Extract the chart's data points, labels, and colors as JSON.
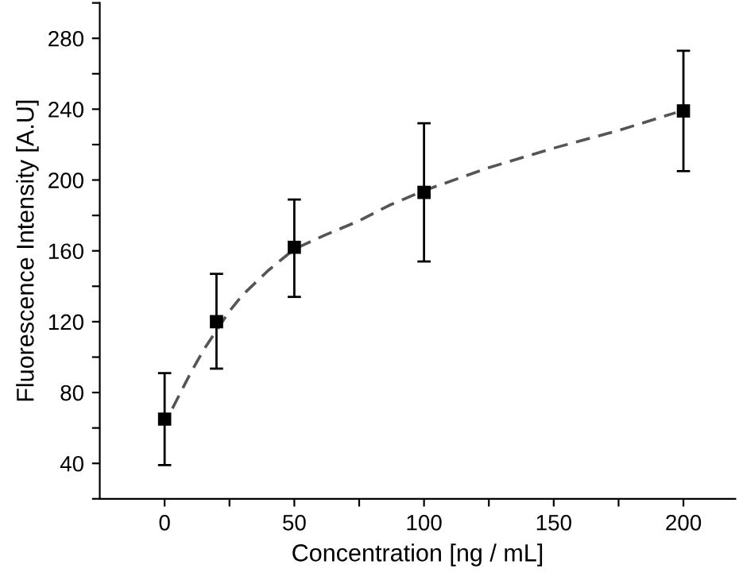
{
  "chart_data": {
    "type": "scatter",
    "xlabel": "Concentration [ng / mL]",
    "ylabel": "Fluorescence Intensity [A.U]",
    "xlim": [
      -25,
      220
    ],
    "ylim": [
      20,
      300
    ],
    "xticks": [
      0,
      {
        "value": 25,
        "label": null
      },
      50,
      {
        "value": 75,
        "label": null
      },
      100,
      {
        "value": 125,
        "label": null
      },
      150,
      {
        "value": 175,
        "label": null
      },
      200
    ],
    "yticks": [
      {
        "value": 20,
        "label": null
      },
      40,
      {
        "value": 60,
        "label": null
      },
      80,
      {
        "value": 100,
        "label": null
      },
      120,
      {
        "value": 140,
        "label": null
      },
      160,
      {
        "value": 180,
        "label": null
      },
      200,
      {
        "value": 220,
        "label": null
      },
      240,
      {
        "value": 260,
        "label": null
      },
      280,
      {
        "value": 300,
        "label": null
      }
    ],
    "grid": false,
    "legend": false,
    "series": [
      {
        "color": "#000000",
        "marker": "square",
        "x": [
          0,
          20,
          50,
          100,
          200
        ],
        "values": [
          65,
          120,
          162,
          193,
          239
        ],
        "errors": [
          [
            39,
            91
          ],
          [
            93.5,
            147
          ],
          [
            134,
            189
          ],
          [
            154,
            232
          ],
          [
            205,
            273
          ]
        ]
      },
      {
        "type": "line",
        "color": "#555555",
        "line_style": "dashed",
        "marker": "none",
        "x": [
          3,
          10,
          15,
          20,
          25,
          30,
          40,
          50,
          62,
          75,
          87,
          100,
          125,
          150,
          175,
          197
        ],
        "values": [
          71,
          91,
          104,
          115,
          126,
          135,
          149,
          161,
          169,
          177,
          186,
          194,
          207,
          218,
          228,
          238
        ]
      }
    ]
  }
}
